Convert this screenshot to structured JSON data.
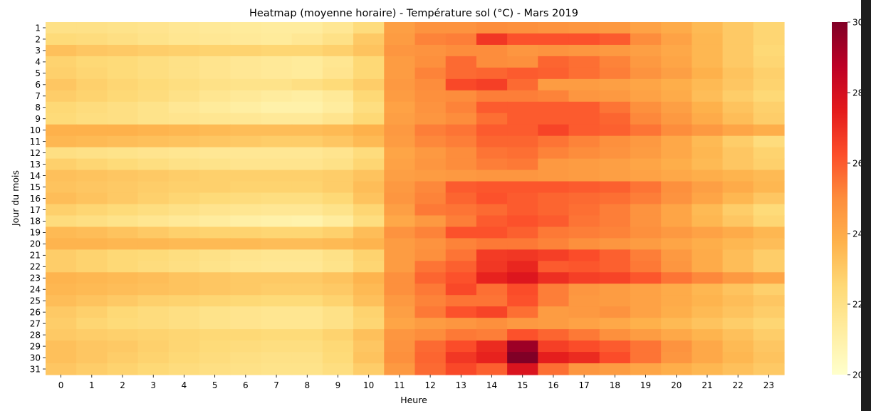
{
  "chart_data": {
    "type": "heatmap",
    "title": "Heatmap (moyenne horaire) - Température sol (°C) - Mars 2019",
    "xlabel": "Heure",
    "ylabel": "Jour du mois",
    "x_categories": [
      "0",
      "1",
      "2",
      "3",
      "4",
      "5",
      "6",
      "7",
      "8",
      "9",
      "10",
      "11",
      "12",
      "13",
      "14",
      "15",
      "16",
      "17",
      "18",
      "19",
      "20",
      "21",
      "22",
      "23"
    ],
    "y_categories": [
      "1",
      "2",
      "3",
      "4",
      "5",
      "6",
      "7",
      "8",
      "9",
      "10",
      "11",
      "12",
      "13",
      "14",
      "15",
      "16",
      "17",
      "18",
      "19",
      "20",
      "21",
      "22",
      "23",
      "24",
      "25",
      "26",
      "27",
      "28",
      "29",
      "30",
      "31"
    ],
    "colorbar": {
      "range": [
        20,
        30
      ],
      "ticks": [
        "20",
        "22",
        "24",
        "26",
        "28",
        "30"
      ],
      "colormap": "YlOrRd",
      "colors": [
        "#ffffcc",
        "#ffeda0",
        "#fed976",
        "#feb24c",
        "#fd8d3c",
        "#fc4e2a",
        "#e31a1c",
        "#bd0026",
        "#800026"
      ]
    },
    "values": [
      [
        22.0,
        22.0,
        21.9,
        21.8,
        21.6,
        21.5,
        21.4,
        21.3,
        21.3,
        21.6,
        22.3,
        24.4,
        24.8,
        24.8,
        25.0,
        24.9,
        24.8,
        24.7,
        24.6,
        24.3,
        24.0,
        23.5,
        23.0,
        22.6
      ],
      [
        22.4,
        22.3,
        22.1,
        21.9,
        21.7,
        21.6,
        21.5,
        21.4,
        21.6,
        22.0,
        23.0,
        24.5,
        25.2,
        25.3,
        26.8,
        26.2,
        26.2,
        26.2,
        26.0,
        25.0,
        24.3,
        23.6,
        23.0,
        22.6
      ],
      [
        23.3,
        23.1,
        23.0,
        22.9,
        22.8,
        22.7,
        22.7,
        22.6,
        22.6,
        22.8,
        23.2,
        24.7,
        24.8,
        25.0,
        25.0,
        24.7,
        24.8,
        24.7,
        24.6,
        24.4,
        24.1,
        23.6,
        23.0,
        22.5
      ],
      [
        22.7,
        22.5,
        22.4,
        22.2,
        22.0,
        21.8,
        21.6,
        21.5,
        21.4,
        21.7,
        22.5,
        24.5,
        24.9,
        25.7,
        25.0,
        24.9,
        25.8,
        25.6,
        25.2,
        24.6,
        24.2,
        23.6,
        23.0,
        22.6
      ],
      [
        22.8,
        22.6,
        22.4,
        22.2,
        22.0,
        21.8,
        21.6,
        21.5,
        21.4,
        21.8,
        22.5,
        24.5,
        25.2,
        25.7,
        25.8,
        26.0,
        25.9,
        25.6,
        25.3,
        24.8,
        24.4,
        23.8,
        23.2,
        22.8
      ],
      [
        23.1,
        22.8,
        22.6,
        22.4,
        22.2,
        22.0,
        21.9,
        21.9,
        22.1,
        22.4,
        22.9,
        24.6,
        25.0,
        26.4,
        26.6,
        25.7,
        24.5,
        24.5,
        24.4,
        24.2,
        23.9,
        23.5,
        23.1,
        22.7
      ],
      [
        22.9,
        22.7,
        22.5,
        22.3,
        22.0,
        21.7,
        21.5,
        21.3,
        21.2,
        21.5,
        22.5,
        24.5,
        24.9,
        25.0,
        25.3,
        25.3,
        25.2,
        24.7,
        24.6,
        24.3,
        24.0,
        23.4,
        22.9,
        22.5
      ],
      [
        22.5,
        22.3,
        22.1,
        21.9,
        21.6,
        21.4,
        21.2,
        21.0,
        21.0,
        21.3,
        22.2,
        24.3,
        24.8,
        25.2,
        26.0,
        26.0,
        26.0,
        26.0,
        25.5,
        24.9,
        24.4,
        23.8,
        23.2,
        22.8
      ],
      [
        22.4,
        22.2,
        22.1,
        21.9,
        21.8,
        21.7,
        21.6,
        21.5,
        21.5,
        21.8,
        22.5,
        24.4,
        24.7,
        25.0,
        25.6,
        26.0,
        26.0,
        26.0,
        25.8,
        25.1,
        24.6,
        24.0,
        23.4,
        22.9
      ],
      [
        23.8,
        23.8,
        23.8,
        23.7,
        23.6,
        23.5,
        23.4,
        23.4,
        23.4,
        23.5,
        23.8,
        24.6,
        25.3,
        25.5,
        26.0,
        26.0,
        26.5,
        26.0,
        25.9,
        25.5,
        25.0,
        24.6,
        24.2,
        23.9
      ],
      [
        23.6,
        23.5,
        23.4,
        23.3,
        23.2,
        23.1,
        23.0,
        22.9,
        22.9,
        23.1,
        23.5,
        24.5,
        25.1,
        25.3,
        25.8,
        25.8,
        25.5,
        25.2,
        24.9,
        24.6,
        24.1,
        23.5,
        22.9,
        22.3
      ],
      [
        22.1,
        22.0,
        21.9,
        21.8,
        21.7,
        21.6,
        21.6,
        21.6,
        21.6,
        21.8,
        22.3,
        24.2,
        24.6,
        25.0,
        25.5,
        25.6,
        25.2,
        25.0,
        24.8,
        24.5,
        24.1,
        23.6,
        23.1,
        22.7
      ],
      [
        22.8,
        22.6,
        22.4,
        22.2,
        22.0,
        21.9,
        21.8,
        21.8,
        21.8,
        22.0,
        22.6,
        24.3,
        24.7,
        25.0,
        25.3,
        25.4,
        24.6,
        24.5,
        24.4,
        24.2,
        23.9,
        23.5,
        23.1,
        22.8
      ],
      [
        23.3,
        23.2,
        23.1,
        23.0,
        22.9,
        22.8,
        22.8,
        22.8,
        22.8,
        22.9,
        23.2,
        24.4,
        24.5,
        24.6,
        24.7,
        24.7,
        24.6,
        24.5,
        24.4,
        24.3,
        24.1,
        23.9,
        23.7,
        23.5
      ],
      [
        23.2,
        23.1,
        23.0,
        22.9,
        22.8,
        22.8,
        22.7,
        22.7,
        22.7,
        22.9,
        23.4,
        24.6,
        25.1,
        26.0,
        26.1,
        26.1,
        26.1,
        26.0,
        25.9,
        25.5,
        24.9,
        24.4,
        24.0,
        23.6
      ],
      [
        23.4,
        23.2,
        23.0,
        22.8,
        22.6,
        22.4,
        22.3,
        22.2,
        22.2,
        22.5,
        23.2,
        24.7,
        25.2,
        25.8,
        26.2,
        26.0,
        25.8,
        25.7,
        25.6,
        25.3,
        24.8,
        24.2,
        23.6,
        23.1
      ],
      [
        22.8,
        22.6,
        22.4,
        22.2,
        22.0,
        21.8,
        21.7,
        21.6,
        21.6,
        21.9,
        22.6,
        24.4,
        25.4,
        25.5,
        25.7,
        26.0,
        25.8,
        25.6,
        25.3,
        24.8,
        24.2,
        23.5,
        22.9,
        22.4
      ],
      [
        22.3,
        22.1,
        21.9,
        21.7,
        21.5,
        21.3,
        21.1,
        21.0,
        20.9,
        21.3,
        22.2,
        24.1,
        24.6,
        25.3,
        26.0,
        26.2,
        26.0,
        25.5,
        25.3,
        24.8,
        24.2,
        23.6,
        23.1,
        22.6
      ],
      [
        23.5,
        23.4,
        23.2,
        23.0,
        22.8,
        22.7,
        22.7,
        22.6,
        22.6,
        22.8,
        23.4,
        24.8,
        25.2,
        26.2,
        26.2,
        25.9,
        25.4,
        25.3,
        25.2,
        24.9,
        24.6,
        24.3,
        24.0,
        23.6
      ],
      [
        23.7,
        23.7,
        23.6,
        23.6,
        23.5,
        23.5,
        23.5,
        23.4,
        23.4,
        23.5,
        23.7,
        24.5,
        24.8,
        25.2,
        25.4,
        25.4,
        25.2,
        24.9,
        24.7,
        24.5,
        24.2,
        23.9,
        23.6,
        23.4
      ],
      [
        22.9,
        22.7,
        22.5,
        22.4,
        22.2,
        22.0,
        21.8,
        21.7,
        21.7,
        22.0,
        22.7,
        24.5,
        24.9,
        25.5,
        26.7,
        26.8,
        26.6,
        26.3,
        25.9,
        25.3,
        24.6,
        24.0,
        23.4,
        22.9
      ],
      [
        22.9,
        22.7,
        22.5,
        22.3,
        22.1,
        21.9,
        21.7,
        21.6,
        21.6,
        21.9,
        22.6,
        24.5,
        25.5,
        25.9,
        26.8,
        27.2,
        26.0,
        26.1,
        25.9,
        25.4,
        24.7,
        24.0,
        23.4,
        22.9
      ],
      [
        23.7,
        23.6,
        23.5,
        23.4,
        23.2,
        23.1,
        23.0,
        23.0,
        23.0,
        23.2,
        23.7,
        24.9,
        25.8,
        26.2,
        27.3,
        27.7,
        27.0,
        26.6,
        26.5,
        26.1,
        25.5,
        25.1,
        24.6,
        24.2
      ],
      [
        23.6,
        23.5,
        23.4,
        23.3,
        23.2,
        23.1,
        23.0,
        22.9,
        22.9,
        23.0,
        23.5,
        24.9,
        25.4,
        26.4,
        25.6,
        26.3,
        25.3,
        24.7,
        24.5,
        24.3,
        24.0,
        23.6,
        23.2,
        22.8
      ],
      [
        23.4,
        23.2,
        23.0,
        22.8,
        22.7,
        22.6,
        22.5,
        22.4,
        22.4,
        22.7,
        23.3,
        24.6,
        25.2,
        25.5,
        25.5,
        26.2,
        25.3,
        24.6,
        24.5,
        24.3,
        24.0,
        23.7,
        23.4,
        23.1
      ],
      [
        23.0,
        22.8,
        22.5,
        22.3,
        22.1,
        21.9,
        21.8,
        21.7,
        21.7,
        22.0,
        22.7,
        24.4,
        25.4,
        26.2,
        26.5,
        25.6,
        24.5,
        24.6,
        24.8,
        24.3,
        23.9,
        23.5,
        23.2,
        22.9
      ],
      [
        22.9,
        22.6,
        22.4,
        22.3,
        22.1,
        21.9,
        21.8,
        21.7,
        21.7,
        22.0,
        22.6,
        24.2,
        24.5,
        24.7,
        24.9,
        24.6,
        24.5,
        24.3,
        24.1,
        23.8,
        23.5,
        23.2,
        22.9,
        22.6
      ],
      [
        23.0,
        22.9,
        22.8,
        22.7,
        22.6,
        22.5,
        22.5,
        22.4,
        22.4,
        22.7,
        23.3,
        24.7,
        25.0,
        25.4,
        25.3,
        26.2,
        25.8,
        25.4,
        24.9,
        24.5,
        24.1,
        23.7,
        23.3,
        22.9
      ],
      [
        23.3,
        23.1,
        23.0,
        22.8,
        22.6,
        22.4,
        22.3,
        22.2,
        22.2,
        22.5,
        23.1,
        24.8,
        25.7,
        26.3,
        27.1,
        29.4,
        26.6,
        26.3,
        26.0,
        25.5,
        24.8,
        24.1,
        23.5,
        23.1
      ],
      [
        23.3,
        23.1,
        22.9,
        22.7,
        22.5,
        22.3,
        22.1,
        22.0,
        22.0,
        22.4,
        23.2,
        24.9,
        25.8,
        26.8,
        27.3,
        30.0,
        27.4,
        27.1,
        26.3,
        25.5,
        24.7,
        24.1,
        23.6,
        23.2
      ],
      [
        23.1,
        22.9,
        22.7,
        22.5,
        22.3,
        22.1,
        22.0,
        21.9,
        21.9,
        22.2,
        22.9,
        24.6,
        25.7,
        26.4,
        25.9,
        27.8,
        25.6,
        24.7,
        24.5,
        24.2,
        23.9,
        23.6,
        23.3,
        23.0
      ]
    ]
  }
}
